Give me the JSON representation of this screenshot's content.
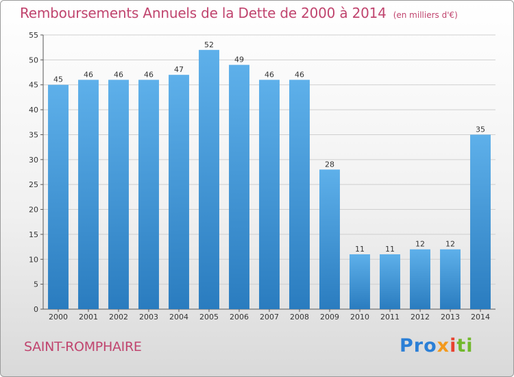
{
  "header": {
    "title": "Remboursements Annuels de la Dette de 2000 à 2014",
    "subtitle": "(en milliers d'€)"
  },
  "footer": {
    "place": "SAINT-ROMPHAIRE",
    "brand_parts": [
      "Pro",
      "x",
      "i",
      "ti"
    ]
  },
  "colors": {
    "title": "#c0446e",
    "bar_top": "#5eb0ea",
    "bar_bottom": "#2a7cbf",
    "grid": "#cfcfcf"
  },
  "chart_data": {
    "type": "bar",
    "title": "Remboursements Annuels de la Dette de 2000 à 2014",
    "subtitle": "(en milliers d'€)",
    "xlabel": "",
    "ylabel": "",
    "categories": [
      "2000",
      "2001",
      "2002",
      "2003",
      "2004",
      "2005",
      "2006",
      "2007",
      "2008",
      "2009",
      "2010",
      "2011",
      "2012",
      "2013",
      "2014"
    ],
    "values": [
      45,
      46,
      46,
      46,
      47,
      52,
      49,
      46,
      46,
      28,
      11,
      11,
      12,
      12,
      35
    ],
    "ylim": [
      0,
      55
    ],
    "yticks": [
      0,
      5,
      10,
      15,
      20,
      25,
      30,
      35,
      40,
      45,
      50,
      55
    ],
    "grid": true,
    "legend": "none"
  }
}
